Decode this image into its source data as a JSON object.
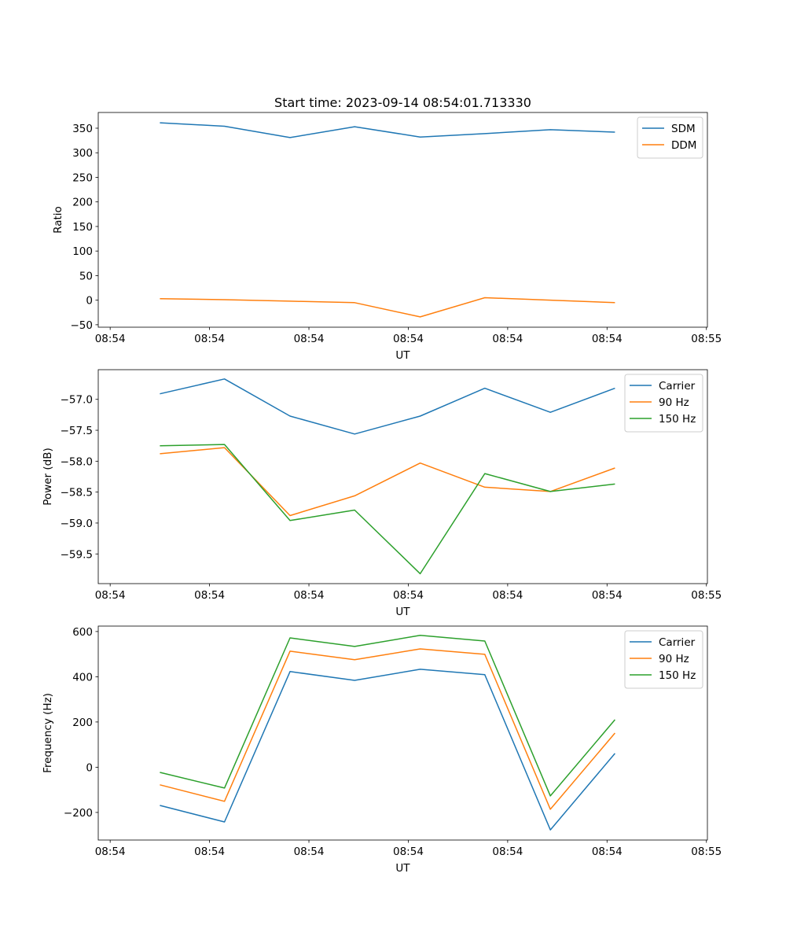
{
  "chart_data": [
    {
      "type": "line",
      "title": "Start time: 2023-09-14 08:54:01.713330",
      "xlabel": "UT",
      "ylabel": "Ratio",
      "x_unit": "seconds after 08:54:00",
      "x": [
        5.0,
        11.5,
        18.1,
        24.6,
        31.2,
        37.7,
        44.3,
        50.8
      ],
      "xlim": [
        -1.2,
        60.1
      ],
      "xticks": [
        0,
        10,
        20,
        30,
        40,
        50,
        60
      ],
      "xtick_labels": [
        "08:54",
        "08:54",
        "08:54",
        "08:54",
        "08:54",
        "08:54",
        "08:55"
      ],
      "ylim": [
        -55,
        382
      ],
      "yticks": [
        -50,
        0,
        50,
        100,
        150,
        200,
        250,
        300,
        350
      ],
      "ytick_labels": [
        "−50",
        "0",
        "50",
        "100",
        "150",
        "200",
        "250",
        "300",
        "350"
      ],
      "legend": "top-right",
      "series": [
        {
          "name": "SDM",
          "color": "#1f77b4",
          "values": [
            361,
            354,
            331,
            353,
            332,
            339,
            347,
            342
          ]
        },
        {
          "name": "DDM",
          "color": "#ff7f0e",
          "values": [
            3,
            1,
            -2,
            -5,
            -34,
            5,
            0,
            -5
          ]
        }
      ]
    },
    {
      "type": "line",
      "title": "",
      "xlabel": "UT",
      "ylabel": "Power (dB)",
      "x_unit": "seconds after 08:54:00",
      "x": [
        5.0,
        11.5,
        18.1,
        24.6,
        31.2,
        37.7,
        44.3,
        50.8
      ],
      "xlim": [
        -1.2,
        60.1
      ],
      "xticks": [
        0,
        10,
        20,
        30,
        40,
        50,
        60
      ],
      "xtick_labels": [
        "08:54",
        "08:54",
        "08:54",
        "08:54",
        "08:54",
        "08:54",
        "08:55"
      ],
      "ylim": [
        -59.98,
        -56.52
      ],
      "yticks": [
        -57.0,
        -57.5,
        -58.0,
        -58.5,
        -59.0,
        -59.5
      ],
      "ytick_labels": [
        "−57.0",
        "−57.5",
        "−58.0",
        "−58.5",
        "−59.0",
        "−59.5"
      ],
      "legend": "top-right",
      "series": [
        {
          "name": "Carrier",
          "color": "#1f77b4",
          "values": [
            -56.91,
            -56.67,
            -57.27,
            -57.56,
            -57.27,
            -56.82,
            -57.21,
            -56.82
          ]
        },
        {
          "name": "90 Hz",
          "color": "#ff7f0e",
          "values": [
            -57.88,
            -57.78,
            -58.88,
            -58.56,
            -58.03,
            -58.42,
            -58.49,
            -58.11
          ]
        },
        {
          "name": "150 Hz",
          "color": "#2ca02c",
          "values": [
            -57.75,
            -57.73,
            -58.96,
            -58.79,
            -59.82,
            -58.2,
            -58.49,
            -58.37
          ]
        }
      ]
    },
    {
      "type": "line",
      "title": "",
      "xlabel": "UT",
      "ylabel": "Frequency (Hz)",
      "x_unit": "seconds after 08:54:00",
      "x": [
        5.0,
        11.5,
        18.1,
        24.6,
        31.2,
        37.7,
        44.3,
        50.8
      ],
      "xlim": [
        -1.2,
        60.1
      ],
      "xticks": [
        0,
        10,
        20,
        30,
        40,
        50,
        60
      ],
      "xtick_labels": [
        "08:54",
        "08:54",
        "08:54",
        "08:54",
        "08:54",
        "08:54",
        "08:55"
      ],
      "ylim": [
        -322,
        624
      ],
      "yticks": [
        -200,
        0,
        200,
        400,
        600
      ],
      "ytick_labels": [
        "−200",
        "0",
        "200",
        "400",
        "600"
      ],
      "legend": "top-right",
      "series": [
        {
          "name": "Carrier",
          "color": "#1f77b4",
          "values": [
            -169,
            -242,
            423,
            384,
            433,
            409,
            -277,
            61
          ]
        },
        {
          "name": "90 Hz",
          "color": "#ff7f0e",
          "values": [
            -78,
            -151,
            513,
            475,
            523,
            499,
            -186,
            151
          ]
        },
        {
          "name": "150 Hz",
          "color": "#2ca02c",
          "values": [
            -23,
            -92,
            572,
            534,
            583,
            558,
            -127,
            210
          ]
        }
      ]
    }
  ]
}
